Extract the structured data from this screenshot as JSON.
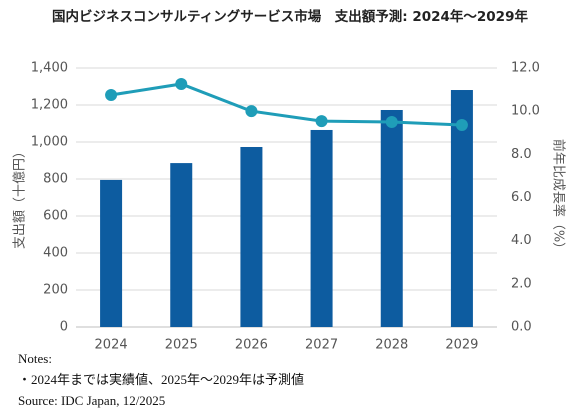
{
  "chart_data": {
    "type": "bar",
    "title": "国内ビジネスコンサルティングサービス市場　支出額予測: 2024年～2029年",
    "categories": [
      "2024",
      "2025",
      "2026",
      "2027",
      "2028",
      "2029"
    ],
    "series": [
      {
        "type": "bar",
        "color": "#0d5ca0",
        "values": [
          795,
          886,
          973,
          1065,
          1173,
          1281
        ]
      },
      {
        "type": "line",
        "axis": "y2",
        "color": "#1f9db8",
        "values": [
          10.75,
          11.26,
          10.0,
          9.54,
          9.5,
          9.36
        ]
      }
    ],
    "ylabel": "支出額（十億円）",
    "y2label": "前年比成長率（%）",
    "ylim": [
      0,
      1400
    ],
    "yticks": [
      0,
      200,
      400,
      600,
      800,
      {
        "value": 1000,
        "label": "1,000"
      },
      {
        "value": 1200,
        "label": "1,200"
      },
      {
        "value": 1400,
        "label": "1,400"
      }
    ],
    "y2lim": [
      0,
      12
    ],
    "y2ticks": [
      {
        "value": 0,
        "label": "0.0"
      },
      {
        "value": 2,
        "label": "2.0"
      },
      {
        "value": 4,
        "label": "4.0"
      },
      {
        "value": 6,
        "label": "6.0"
      },
      {
        "value": 8,
        "label": "8.0"
      },
      {
        "value": 10,
        "label": "10.0"
      },
      {
        "value": 12,
        "label": "12.0"
      }
    ],
    "grid": true,
    "notes": [
      "Notes:",
      "・2024年までは実績値、2025年～2029年は予測値",
      "Source: IDC Japan, 12/2025"
    ]
  }
}
